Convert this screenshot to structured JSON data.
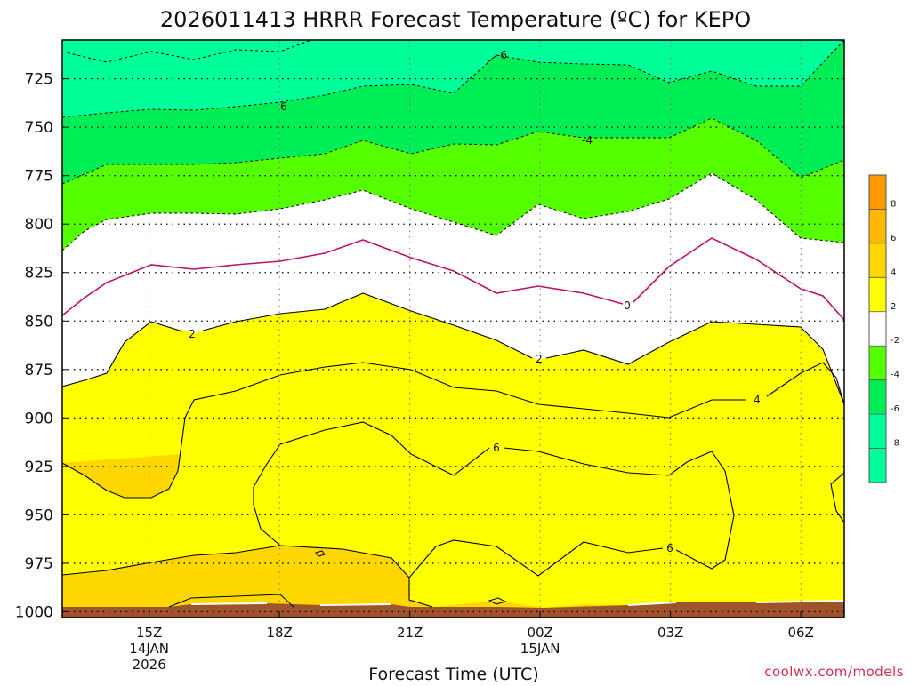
{
  "chart_data": {
    "type": "contour",
    "title": "2026011413 HRRR Forecast Temperature (ºC) for KEPO",
    "xlabel": "Forecast Time (UTC)",
    "ylabel": "",
    "credit": "coolwx.com/models",
    "y_axis": {
      "units": "hPa",
      "range": [
        705,
        1003
      ],
      "ticks": [
        725,
        750,
        775,
        800,
        825,
        850,
        875,
        900,
        925,
        950,
        975,
        1000
      ]
    },
    "x_axis": {
      "units": "hours from 14JAN 15Z",
      "range": [
        -2,
        16
      ],
      "ticks": [
        {
          "hour": 0,
          "label": "15Z",
          "sub1": "14JAN",
          "sub2": "2026"
        },
        {
          "hour": 3,
          "label": "18Z",
          "sub1": "",
          "sub2": ""
        },
        {
          "hour": 6,
          "label": "21Z",
          "sub1": "",
          "sub2": ""
        },
        {
          "hour": 9,
          "label": "00Z",
          "sub1": "15JAN",
          "sub2": ""
        },
        {
          "hour": 12,
          "label": "03Z",
          "sub1": "",
          "sub2": ""
        },
        {
          "hour": 15,
          "label": "06Z",
          "sub1": "",
          "sub2": ""
        }
      ]
    },
    "contour_levels": [
      -8,
      -6,
      -4,
      -2,
      0,
      2,
      4,
      6,
      8
    ],
    "contour_labels": [
      "-6",
      "6",
      "-4",
      "0",
      "2",
      "2",
      "4",
      "6",
      "6"
    ],
    "legend": {
      "placement": "right",
      "ticks": [
        "8",
        "6",
        "4",
        "2",
        "-2",
        "-4",
        "-6",
        "-8"
      ]
    },
    "colors": {
      "lt_m6": "#00ff99",
      "m6_m4": "#00ee55",
      "m4_m2": "#55ff00",
      "m2_2": "#ffffff",
      "p2_4": "#ffff00",
      "p4_6": "#ffd700",
      "p6_8": "#ffb800",
      "gt_8": "#ff9900",
      "zero_line": "#c0106a",
      "ground": "#a0522d"
    }
  }
}
